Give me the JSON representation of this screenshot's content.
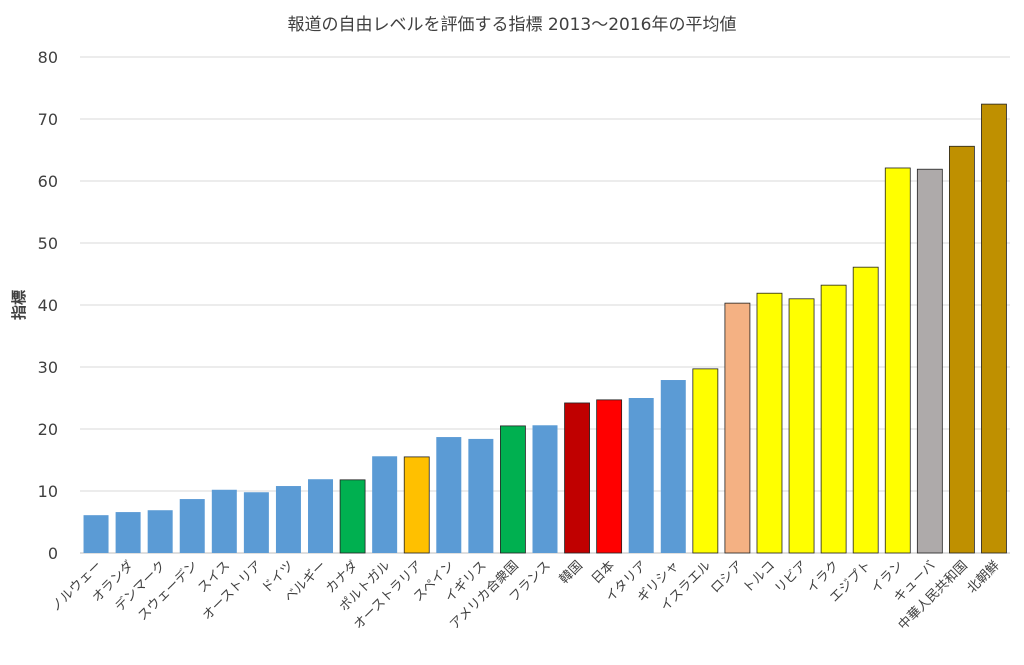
{
  "chart_data": {
    "type": "bar",
    "title": "報道の自由レベルを評価する指標 2013～2016年の平均値",
    "xlabel": "",
    "ylabel": "指標",
    "ylim": [
      0,
      80
    ],
    "yticks": [
      0,
      10,
      20,
      30,
      40,
      50,
      60,
      70,
      80
    ],
    "grid": true,
    "categories": [
      "ノルウェー",
      "オランダ",
      "デンマーク",
      "スウェーデン",
      "スイス",
      "オーストリア",
      "ドイツ",
      "ベルギー",
      "カナダ",
      "ポルトガル",
      "オーストラリア",
      "スペイン",
      "イギリス",
      "アメリカ合衆国",
      "フランス",
      "韓国",
      "日本",
      "イタリア",
      "ギリシャ",
      "イスラエル",
      "ロシア",
      "トルコ",
      "リビア",
      "イラク",
      "エジプト",
      "イラン",
      "キューバ",
      "中華人民共和国",
      "北朝鮮"
    ],
    "values": [
      6.1,
      6.6,
      6.9,
      8.7,
      10.2,
      9.8,
      10.8,
      11.9,
      11.8,
      15.6,
      15.5,
      18.7,
      18.4,
      20.5,
      20.6,
      24.2,
      24.7,
      25.0,
      27.9,
      29.7,
      40.3,
      41.9,
      41.0,
      43.2,
      46.1,
      62.1,
      61.9,
      65.6,
      72.4
    ],
    "colors": [
      "#5B9BD5",
      "#5B9BD5",
      "#5B9BD5",
      "#5B9BD5",
      "#5B9BD5",
      "#5B9BD5",
      "#5B9BD5",
      "#5B9BD5",
      "#00B050",
      "#5B9BD5",
      "#FFC000",
      "#5B9BD5",
      "#5B9BD5",
      "#00B050",
      "#5B9BD5",
      "#C00000",
      "#FF0000",
      "#5B9BD5",
      "#5B9BD5",
      "#FFFF00",
      "#F4B183",
      "#FFFF00",
      "#FFFF00",
      "#FFFF00",
      "#FFFF00",
      "#FFFF00",
      "#AEAAAA",
      "#BF9000",
      "#BF9000"
    ]
  }
}
